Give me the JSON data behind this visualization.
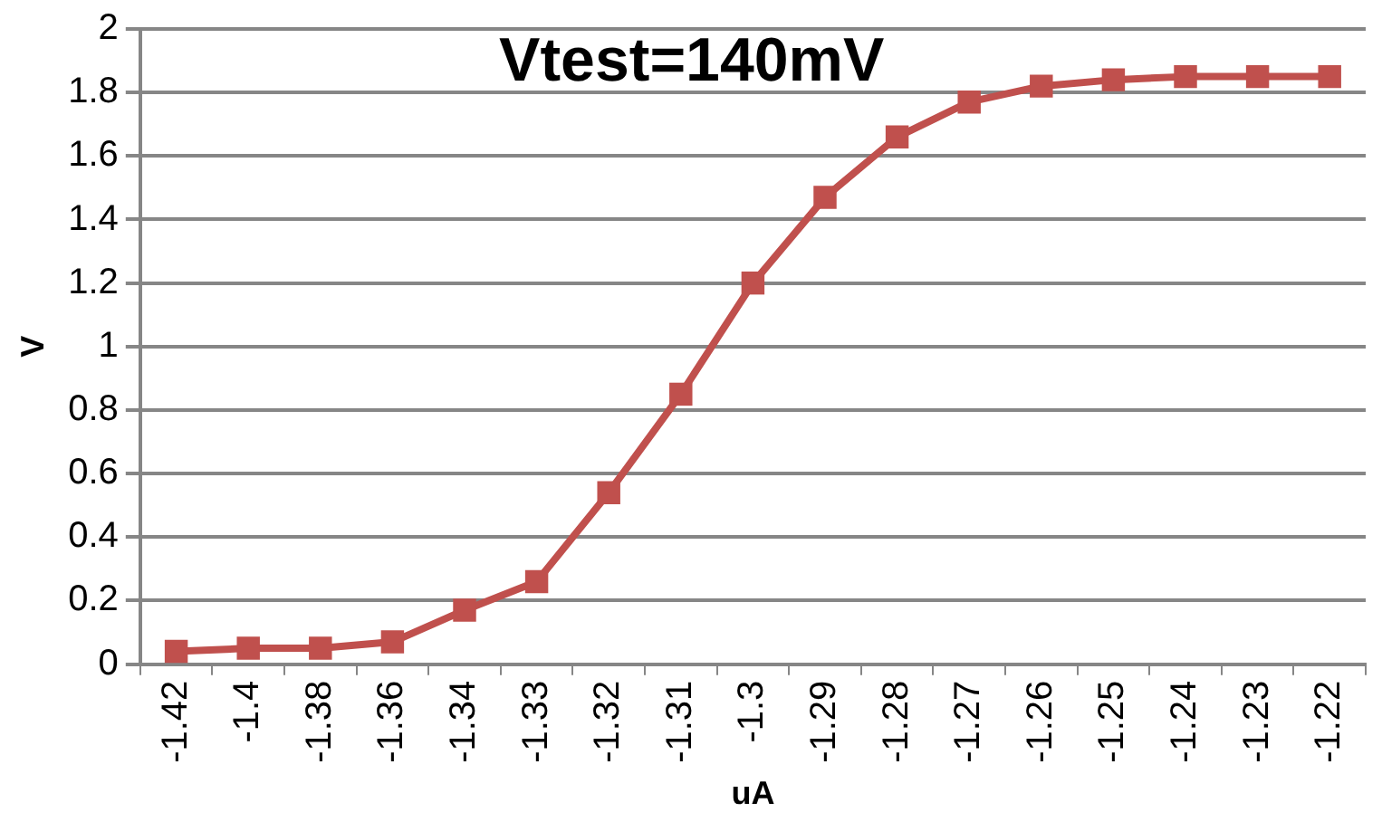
{
  "chart_data": {
    "type": "line",
    "title": "Vtest=140mV",
    "xlabel": "uA",
    "ylabel": "V",
    "categories": [
      "-1.42",
      "-1.4",
      "-1.38",
      "-1.36",
      "-1.34",
      "-1.33",
      "-1.32",
      "-1.31",
      "-1.3",
      "-1.29",
      "-1.28",
      "-1.27",
      "-1.26",
      "-1.25",
      "-1.24",
      "-1.23",
      "-1.22"
    ],
    "series": [
      {
        "color": "#c0504d",
        "values": [
          0.04,
          0.05,
          0.05,
          0.07,
          0.17,
          0.26,
          0.54,
          0.85,
          1.2,
          1.47,
          1.66,
          1.77,
          1.82,
          1.84,
          1.85,
          1.85,
          1.85
        ]
      }
    ],
    "ylim": [
      0,
      2
    ],
    "yticks": [
      0,
      0.2,
      0.4,
      0.6,
      0.8,
      1,
      1.2,
      1.4,
      1.6,
      1.8,
      2
    ],
    "grid": "y",
    "legend": false,
    "marker": "square",
    "line_style": "solid"
  }
}
